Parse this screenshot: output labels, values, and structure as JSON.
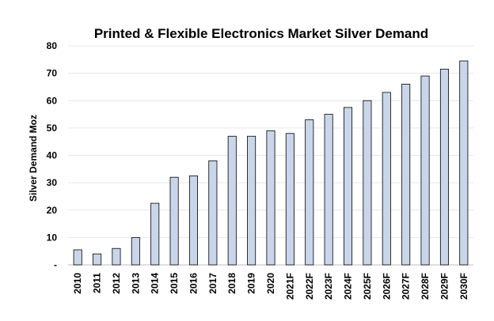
{
  "chart_data": {
    "type": "bar",
    "title": "Printed & Flexible Electronics Market  Silver Demand",
    "xlabel": "",
    "ylabel": "Silver Demand Moz",
    "ylim": [
      0,
      80
    ],
    "y_ticks": [
      0,
      10,
      20,
      30,
      40,
      50,
      60,
      70,
      80
    ],
    "y_tick_labels": [
      "-",
      "10",
      "20",
      "30",
      "40",
      "50",
      "60",
      "70",
      "80"
    ],
    "grid": true,
    "legend": "none",
    "bar_color": "#c9d6ea",
    "bar_edge_color": "#000000",
    "categories": [
      "2010",
      "2011",
      "2012",
      "2013",
      "2014",
      "2015",
      "2016",
      "2017",
      "2018",
      "2019",
      "2020",
      "2021F",
      "2022F",
      "2023F",
      "2024F",
      "2025F",
      "2026F",
      "2027F",
      "2028F",
      "2029F",
      "2030F"
    ],
    "values": [
      5.5,
      4,
      6,
      10,
      22.5,
      32,
      32.5,
      38,
      47,
      47,
      49,
      48,
      53,
      55,
      57.5,
      60,
      63,
      66,
      69,
      71.5,
      74.5
    ]
  }
}
